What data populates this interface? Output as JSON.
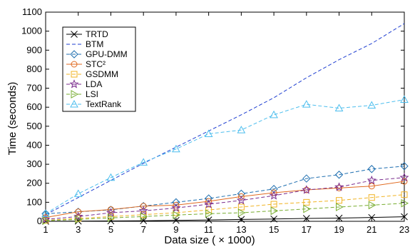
{
  "chart_data": {
    "type": "line",
    "title": "",
    "xlabel": "Data size ( × 1000)",
    "ylabel": "Time (seconds)",
    "x": [
      1,
      3,
      5,
      7,
      9,
      11,
      13,
      15,
      17,
      19,
      21,
      23
    ],
    "xlim": [
      1,
      23
    ],
    "ylim": [
      0,
      1100
    ],
    "xticks": [
      "1",
      "3",
      "5",
      "7",
      "9",
      "11",
      "13",
      "15",
      "17",
      "19",
      "21",
      "23"
    ],
    "yticks": [
      "0",
      "100",
      "200",
      "300",
      "400",
      "500",
      "600",
      "700",
      "800",
      "900",
      "1000",
      "1100"
    ],
    "grid": false,
    "legend_position": "top-left",
    "series": [
      {
        "name": "TRTD",
        "color": "#000000",
        "marker": "x",
        "dash": "solid",
        "values": [
          0,
          1,
          2,
          3,
          5,
          7,
          10,
          12,
          15,
          17,
          20,
          24
        ]
      },
      {
        "name": "BTM",
        "color": "#1f3fd1",
        "marker": "none",
        "dash": "dashed",
        "values": [
          35,
          125,
          215,
          305,
          390,
          475,
          560,
          650,
          755,
          850,
          935,
          1040
        ]
      },
      {
        "name": "GPU-DMM",
        "color": "#1f6fb0",
        "marker": "diamond",
        "dash": "dashed",
        "values": [
          40,
          50,
          60,
          80,
          100,
          120,
          145,
          170,
          225,
          245,
          275,
          290
        ]
      },
      {
        "name": "STC²",
        "color": "#e06a20",
        "marker": "circle",
        "dash": "solid",
        "values": [
          20,
          50,
          62,
          80,
          85,
          105,
          130,
          150,
          165,
          175,
          185,
          210
        ]
      },
      {
        "name": "GSDMM",
        "color": "#f0b323",
        "marker": "square",
        "dash": "dashed",
        "values": [
          5,
          15,
          25,
          35,
          45,
          60,
          75,
          90,
          100,
          110,
          125,
          140
        ]
      },
      {
        "name": "LDA",
        "color": "#7b2d8e",
        "marker": "star",
        "dash": "dashed",
        "values": [
          10,
          25,
          45,
          55,
          70,
          90,
          110,
          135,
          165,
          180,
          215,
          230
        ]
      },
      {
        "name": "LSI",
        "color": "#77ac30",
        "marker": "triangle-right",
        "dash": "dashed",
        "values": [
          3,
          10,
          18,
          25,
          33,
          40,
          45,
          55,
          65,
          75,
          85,
          95
        ]
      },
      {
        "name": "TextRank",
        "color": "#4dbeee",
        "marker": "triangle-up",
        "dash": "dashed",
        "values": [
          40,
          145,
          230,
          310,
          380,
          460,
          480,
          560,
          615,
          595,
          610,
          640
        ]
      }
    ]
  }
}
